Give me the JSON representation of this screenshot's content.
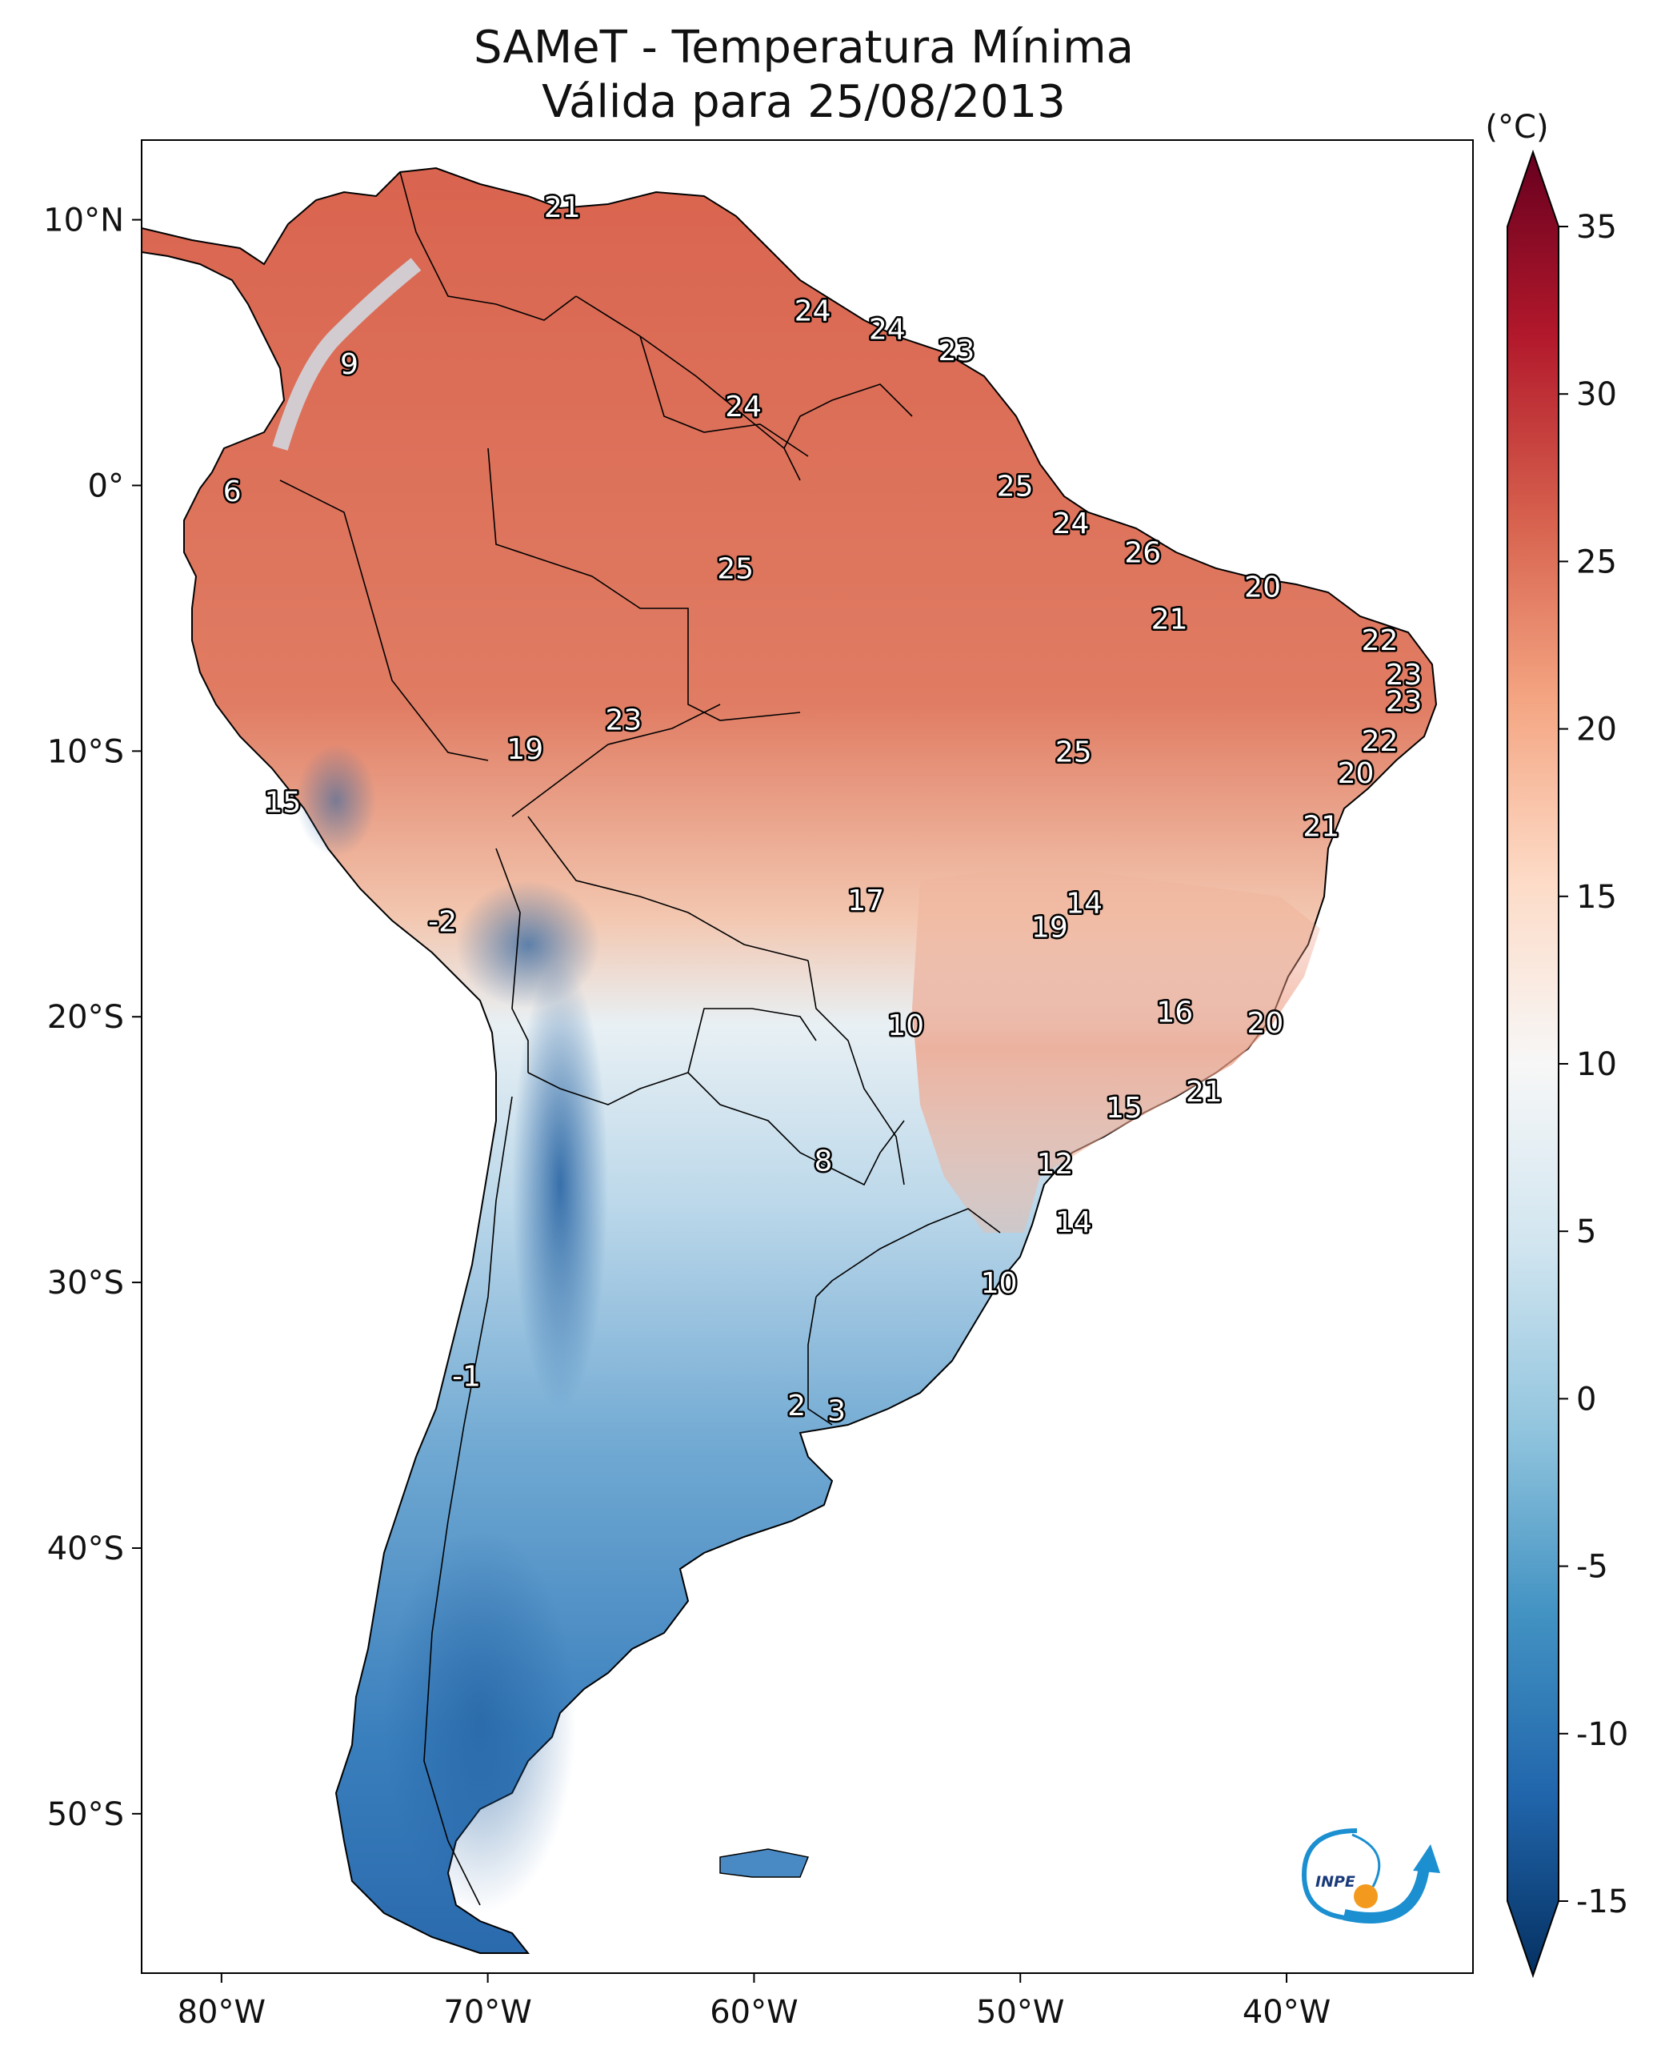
{
  "title": {
    "line1": "SAMeT - Temperatura Mínima",
    "line2": "Válida para 25/08/2013"
  },
  "map": {
    "lon_ticks": [
      {
        "lon": -80,
        "label": "80°W"
      },
      {
        "lon": -70,
        "label": "70°W"
      },
      {
        "lon": -60,
        "label": "60°W"
      },
      {
        "lon": -50,
        "label": "50°W"
      },
      {
        "lon": -40,
        "label": "40°W"
      }
    ],
    "lat_ticks": [
      {
        "lat": 10,
        "label": "10°N"
      },
      {
        "lat": 0,
        "label": "0°"
      },
      {
        "lat": -10,
        "label": "10°S"
      },
      {
        "lat": -20,
        "label": "20°S"
      },
      {
        "lat": -30,
        "label": "30°S"
      },
      {
        "lat": -40,
        "label": "40°S"
      },
      {
        "lat": -50,
        "label": "50°S"
      }
    ],
    "extent": {
      "lon_min": -83,
      "lon_max": -33,
      "lat_min": -56,
      "lat_max": 13
    },
    "point_labels": [
      {
        "lon": -67.2,
        "lat": 10.5,
        "value": "21"
      },
      {
        "lon": -75.2,
        "lat": 4.6,
        "value": "9"
      },
      {
        "lon": -57.8,
        "lat": 6.6,
        "value": "24"
      },
      {
        "lon": -55.0,
        "lat": 5.9,
        "value": "24"
      },
      {
        "lon": -52.4,
        "lat": 5.1,
        "value": "23"
      },
      {
        "lon": -60.4,
        "lat": 3.0,
        "value": "24"
      },
      {
        "lon": -79.6,
        "lat": -0.2,
        "value": "6"
      },
      {
        "lon": -50.2,
        "lat": 0.0,
        "value": "25"
      },
      {
        "lon": -60.7,
        "lat": -3.1,
        "value": "25"
      },
      {
        "lon": -48.1,
        "lat": -1.4,
        "value": "24"
      },
      {
        "lon": -45.4,
        "lat": -2.5,
        "value": "26"
      },
      {
        "lon": -40.9,
        "lat": -3.8,
        "value": "20"
      },
      {
        "lon": -44.4,
        "lat": -5.0,
        "value": "21"
      },
      {
        "lon": -36.5,
        "lat": -5.8,
        "value": "22"
      },
      {
        "lon": -35.6,
        "lat": -7.1,
        "value": "23"
      },
      {
        "lon": -35.6,
        "lat": -8.1,
        "value": "23"
      },
      {
        "lon": -36.5,
        "lat": -9.6,
        "value": "22"
      },
      {
        "lon": -64.9,
        "lat": -8.8,
        "value": "23"
      },
      {
        "lon": -68.6,
        "lat": -9.9,
        "value": "19"
      },
      {
        "lon": -48.0,
        "lat": -10.0,
        "value": "25"
      },
      {
        "lon": -37.4,
        "lat": -10.8,
        "value": "20"
      },
      {
        "lon": -77.7,
        "lat": -11.9,
        "value": "15"
      },
      {
        "lon": -38.7,
        "lat": -12.8,
        "value": "21"
      },
      {
        "lon": -55.8,
        "lat": -15.6,
        "value": "17"
      },
      {
        "lon": -47.6,
        "lat": -15.7,
        "value": "14"
      },
      {
        "lon": -48.9,
        "lat": -16.6,
        "value": "19"
      },
      {
        "lon": -71.7,
        "lat": -16.4,
        "value": "-2"
      },
      {
        "lon": -54.3,
        "lat": -20.3,
        "value": "10"
      },
      {
        "lon": -44.2,
        "lat": -19.8,
        "value": "16"
      },
      {
        "lon": -40.8,
        "lat": -20.2,
        "value": "20"
      },
      {
        "lon": -43.1,
        "lat": -22.8,
        "value": "21"
      },
      {
        "lon": -46.1,
        "lat": -23.4,
        "value": "15"
      },
      {
        "lon": -57.4,
        "lat": -25.4,
        "value": "8"
      },
      {
        "lon": -48.7,
        "lat": -25.5,
        "value": "12"
      },
      {
        "lon": -48.0,
        "lat": -27.7,
        "value": "14"
      },
      {
        "lon": -50.8,
        "lat": -30.0,
        "value": "10"
      },
      {
        "lon": -70.8,
        "lat": -33.5,
        "value": "-1"
      },
      {
        "lon": -58.4,
        "lat": -34.6,
        "value": "2"
      },
      {
        "lon": -56.9,
        "lat": -34.8,
        "value": "3"
      }
    ]
  },
  "colorbar": {
    "unit_label": "(°C)",
    "min": -15,
    "max": 35,
    "ticks": [
      "35",
      "30",
      "25",
      "20",
      "15",
      "10",
      "5",
      "0",
      "-5",
      "-10",
      "-15"
    ],
    "colors": [
      "#053061",
      "#2166ac",
      "#4393c3",
      "#92c5de",
      "#d1e5f0",
      "#f7f7f7",
      "#fddbc7",
      "#f4a582",
      "#d6604d",
      "#b2182b",
      "#67001f"
    ]
  },
  "logo": {
    "text": "INPE"
  }
}
